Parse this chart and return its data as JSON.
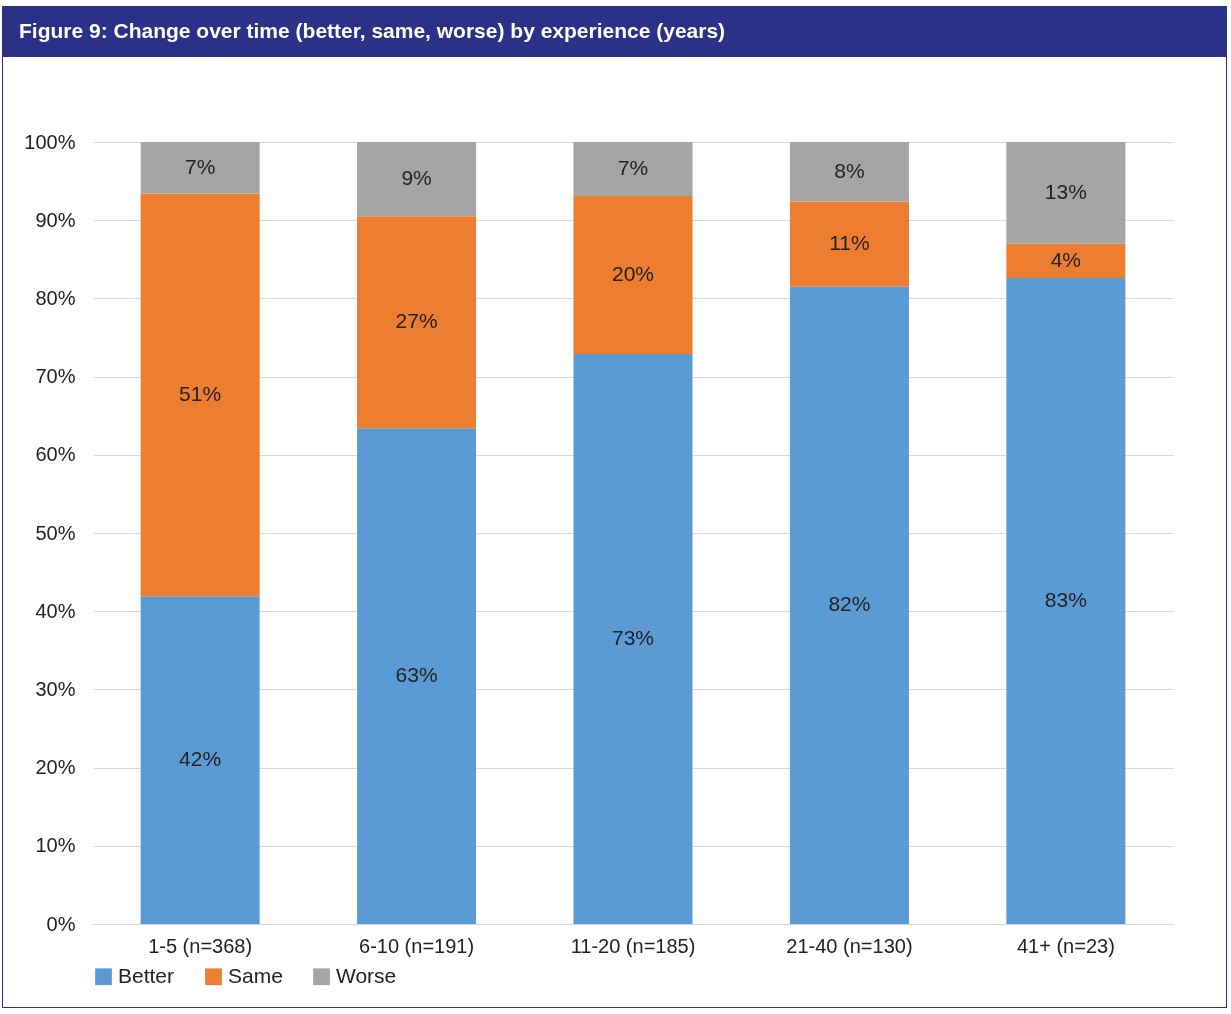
{
  "chart_data": {
    "type": "bar",
    "title": "Figure 9: Change over time (better, same, worse) by experience (years)",
    "categories": [
      "1-5 (n=368)",
      "6-10 (n=191)",
      "11-20 (n=185)",
      "21-40 (n=130)",
      "41+ (n=23)"
    ],
    "series": [
      {
        "name": "Better",
        "color": "#5b9bd5",
        "values": [
          41.9,
          63.4,
          72.9,
          81.5,
          82.6
        ],
        "value_labels": [
          "42%",
          "63%",
          "73%",
          "82%",
          "83%"
        ]
      },
      {
        "name": "Same",
        "color": "#ed7d31",
        "values": [
          51.5,
          27.1,
          20.2,
          10.9,
          4.4
        ],
        "value_labels": [
          "51%",
          "27%",
          "20%",
          "11%",
          "4%"
        ]
      },
      {
        "name": "Worse",
        "color": "#a5a5a5",
        "values": [
          6.6,
          9.5,
          6.9,
          7.6,
          13.0
        ],
        "value_labels": [
          "7%",
          "9%",
          "7%",
          "8%",
          "13%"
        ]
      }
    ],
    "stacked": true,
    "ylim": [
      0,
      100
    ],
    "yticks": [
      {
        "value": 0,
        "label": "0%"
      },
      {
        "value": 10,
        "label": "10%"
      },
      {
        "value": 20,
        "label": "20%"
      },
      {
        "value": 30,
        "label": "30%"
      },
      {
        "value": 40,
        "label": "40%"
      },
      {
        "value": 50,
        "label": "50%"
      },
      {
        "value": 60,
        "label": "60%"
      },
      {
        "value": 70,
        "label": "70%"
      },
      {
        "value": 80,
        "label": "80%"
      },
      {
        "value": 90,
        "label": "90%"
      },
      {
        "value": 100,
        "label": "100%"
      }
    ],
    "grid": "y",
    "legend": "bottom"
  }
}
